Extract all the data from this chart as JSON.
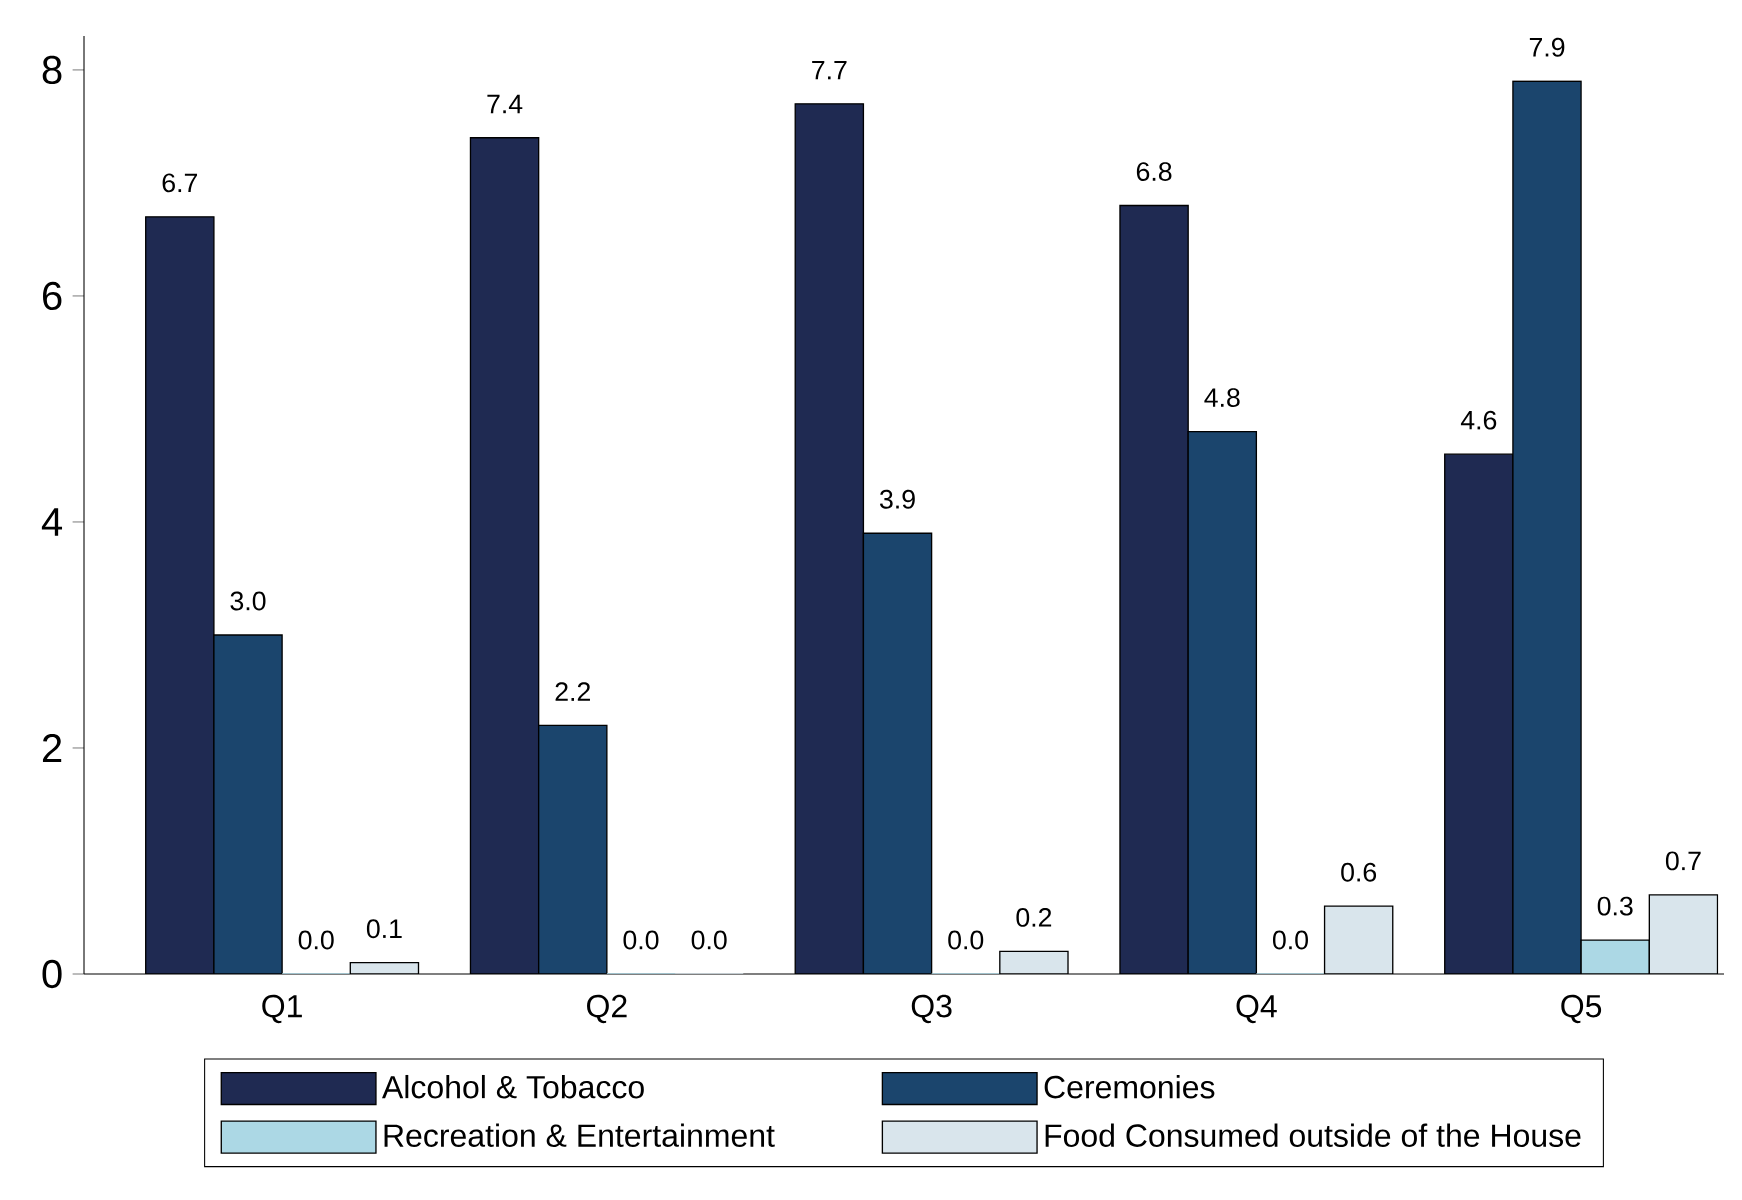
{
  "chart_data": {
    "type": "bar",
    "categories": [
      "Q1",
      "Q2",
      "Q3",
      "Q4",
      "Q5"
    ],
    "series": [
      {
        "name": "Alcohol & Tobacco",
        "color": "#1f2a52",
        "values": [
          6.7,
          7.4,
          7.7,
          6.8,
          4.6
        ],
        "value_labels": [
          "6.7",
          "7.4",
          "7.7",
          "6.8",
          "4.6"
        ]
      },
      {
        "name": "Ceremonies",
        "color": "#1b456d",
        "values": [
          3.0,
          2.2,
          3.9,
          4.8,
          7.9
        ],
        "value_labels": [
          "3.0",
          "2.2",
          "3.9",
          "4.8",
          "7.9"
        ]
      },
      {
        "name": "Recreation & Entertainment",
        "color": "#acd8e5",
        "values": [
          0.0,
          0.0,
          0.0,
          0.0,
          0.3
        ],
        "value_labels": [
          "0.0",
          "0.0",
          "0.0",
          "0.0",
          "0.3"
        ]
      },
      {
        "name": "Food Consumed outside of the House",
        "color": "#d9e5ec",
        "values": [
          0.1,
          0.0,
          0.2,
          0.6,
          0.7
        ],
        "value_labels": [
          "0.1",
          "0.0",
          "0.2",
          "0.6",
          "0.7"
        ]
      }
    ],
    "ylim": [
      0,
      8.3
    ],
    "yticks": [
      0,
      2,
      4,
      6,
      8
    ],
    "grid": false,
    "legend": "bottom"
  }
}
